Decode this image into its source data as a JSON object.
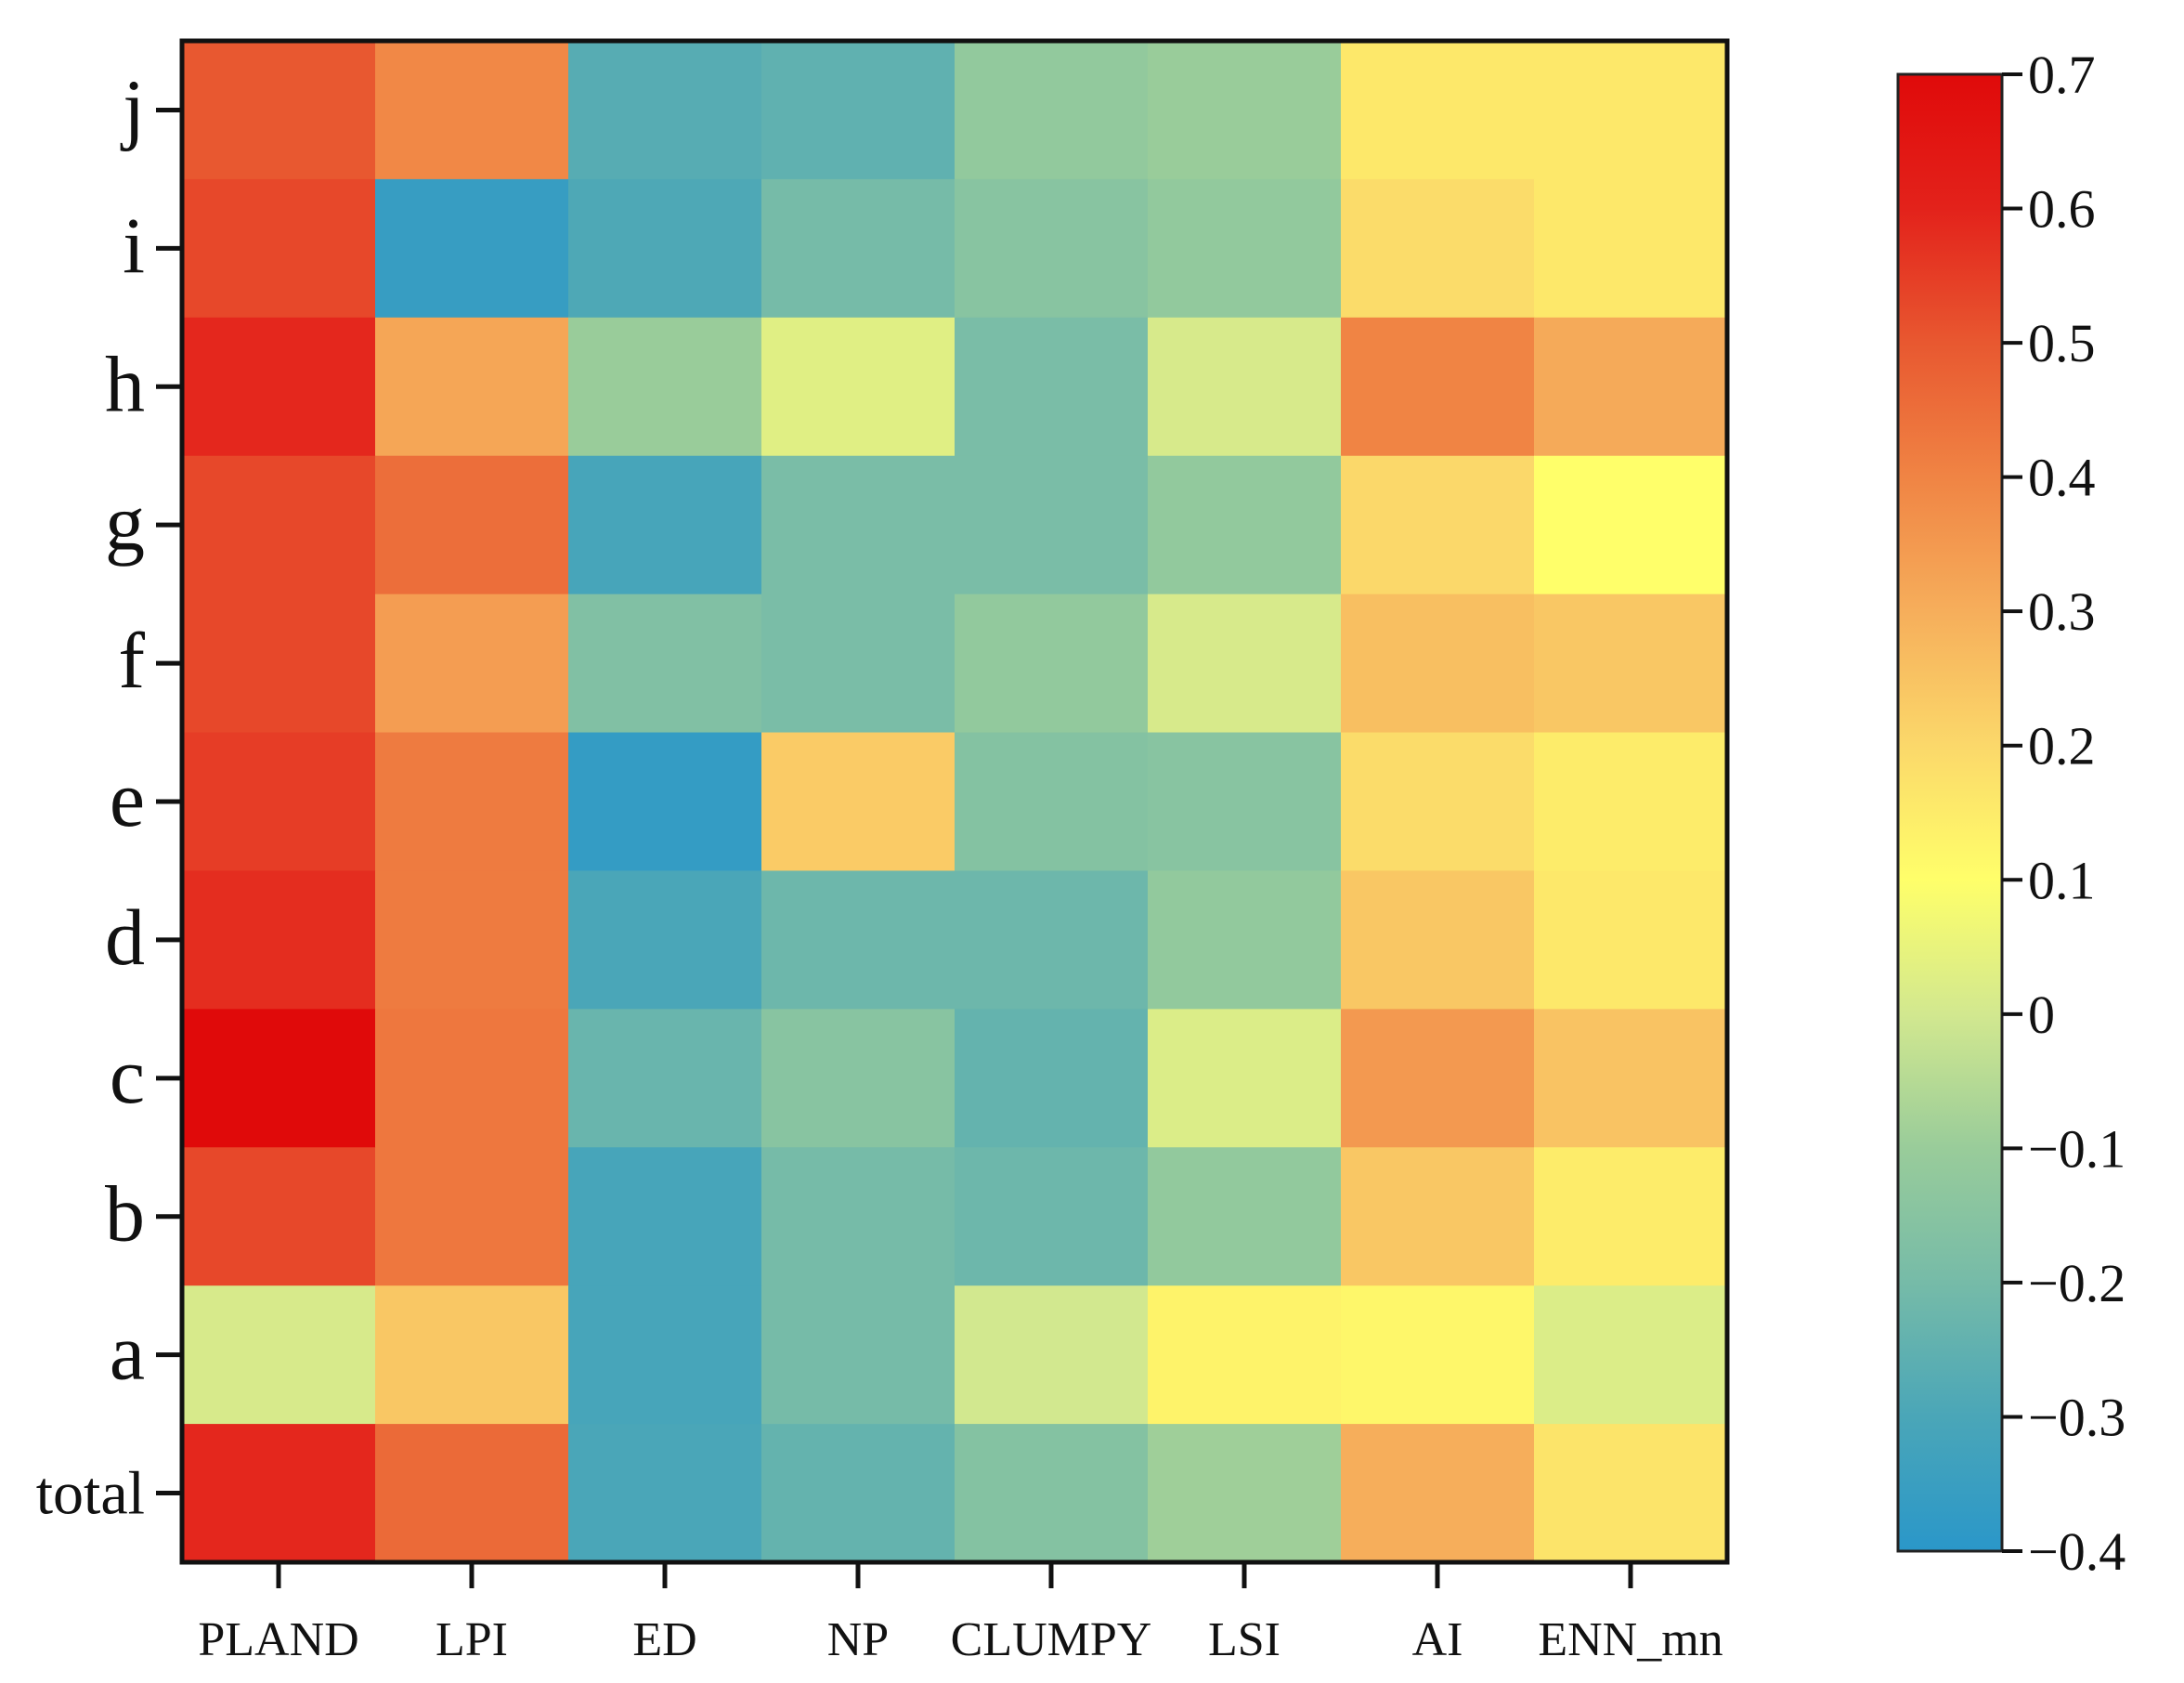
{
  "chart_data": {
    "type": "heatmap",
    "title": "",
    "xlabel": "",
    "ylabel": "",
    "x_categories": [
      "PLAND",
      "LPI",
      "ED",
      "NP",
      "CLUMPY",
      "LSI",
      "AI",
      "ENN_mn"
    ],
    "y_categories": [
      "j",
      "i",
      "h",
      "g",
      "f",
      "e",
      "d",
      "c",
      "b",
      "a",
      "total"
    ],
    "values": [
      [
        0.5,
        0.39,
        -0.27,
        -0.25,
        -0.12,
        -0.1,
        0.16,
        0.16
      ],
      [
        0.53,
        -0.36,
        -0.29,
        -0.2,
        -0.15,
        -0.12,
        0.19,
        0.16
      ],
      [
        0.59,
        0.32,
        -0.1,
        0.03,
        -0.19,
        0.01,
        0.4,
        0.31
      ],
      [
        0.53,
        0.45,
        -0.31,
        -0.19,
        -0.19,
        -0.12,
        0.2,
        0.1
      ],
      [
        0.53,
        0.34,
        -0.17,
        -0.19,
        -0.12,
        0.01,
        0.26,
        0.24
      ],
      [
        0.55,
        0.42,
        -0.37,
        0.23,
        -0.16,
        -0.15,
        0.19,
        0.15
      ],
      [
        0.58,
        0.42,
        -0.3,
        -0.22,
        -0.22,
        -0.12,
        0.24,
        0.16
      ],
      [
        0.7,
        0.43,
        -0.23,
        -0.15,
        -0.24,
        0.02,
        0.35,
        0.25
      ],
      [
        0.53,
        0.43,
        -0.31,
        -0.2,
        -0.22,
        -0.12,
        0.24,
        0.15
      ],
      [
        0.01,
        0.24,
        -0.31,
        -0.2,
        0.0,
        0.13,
        0.12,
        0.02
      ],
      [
        0.59,
        0.46,
        -0.3,
        -0.24,
        -0.16,
        -0.09,
        0.3,
        0.17
      ]
    ],
    "colorbar": {
      "min": -0.4,
      "max": 0.7,
      "ticks": [
        0.7,
        0.6,
        0.5,
        0.4,
        0.3,
        0.2,
        0.1,
        0,
        -0.1,
        -0.2,
        -0.3,
        -0.4
      ],
      "tick_labels": [
        "0.7",
        "0.6",
        "0.5",
        "0.4",
        "0.3",
        "0.2",
        "0.1",
        "0",
        "−0.1",
        "−0.2",
        "−0.3",
        "−0.4"
      ],
      "colors": [
        "#2a97c9",
        "#4aa6b8",
        "#76bba8",
        "#99cc9a",
        "#d2e88f",
        "#ffff6a",
        "#fbd86a",
        "#f6ae5b",
        "#f08444",
        "#e85830",
        "#e3221b",
        "#e00a0a"
      ]
    },
    "grid": false,
    "legend": "right"
  }
}
